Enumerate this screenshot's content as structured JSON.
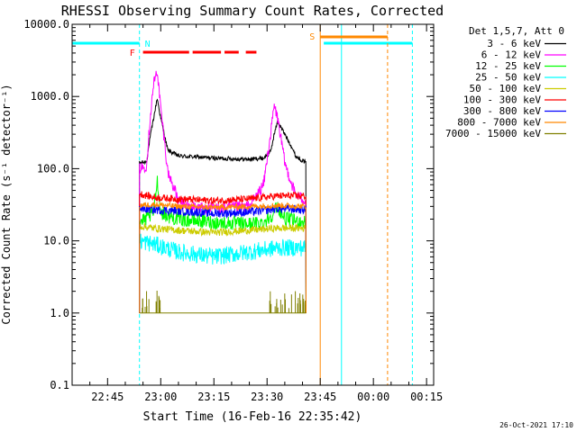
{
  "chart_data": {
    "type": "line",
    "title": "RHESSI Observing Summary Count Rates, Corrected",
    "xlabel": "Start Time (16-Feb-16 22:35:42)",
    "ylabel": "Corrected Count Rate (s⁻¹ detector⁻¹)",
    "y_scale": "log",
    "ylim": [
      0.1,
      10000
    ],
    "xlim": [
      "22:35",
      "00:17"
    ],
    "x_tick_labels": [
      "22:45",
      "23:00",
      "23:15",
      "23:30",
      "23:45",
      "00:00",
      "00:15"
    ],
    "y_tick_labels": [
      "10000.0",
      "1000.0",
      "100.0",
      "10.0",
      "1.0",
      "0.1"
    ],
    "legend_title": "Det 1,5,7, Att 0",
    "legend_position": "right",
    "timestamp": "26-Oct-2021 17:10",
    "series": [
      {
        "name": "3 - 6 keV",
        "color": "#000000",
        "x": [
          "22:54",
          "22:56",
          "22:57",
          "22:58",
          "22:59",
          "23:00",
          "23:02",
          "23:05",
          "23:15",
          "23:25",
          "23:29",
          "23:31",
          "23:32",
          "23:33",
          "23:35",
          "23:37",
          "23:38",
          "23:40",
          "23:41"
        ],
        "y": [
          120,
          125,
          270,
          500,
          950,
          500,
          180,
          150,
          140,
          135,
          140,
          170,
          300,
          450,
          300,
          200,
          150,
          130,
          120
        ]
      },
      {
        "name": "6 - 12 keV",
        "color": "#ff00ff",
        "x": [
          "22:54",
          "22:56",
          "22:57",
          "22:58",
          "22:59",
          "23:00",
          "23:02",
          "23:04",
          "23:05",
          "23:08",
          "23:15",
          "23:25",
          "23:29",
          "23:31",
          "23:32",
          "23:33",
          "23:35",
          "23:37",
          "23:38",
          "23:40",
          "23:41"
        ],
        "y": [
          100,
          110,
          500,
          1500,
          2300,
          700,
          90,
          50,
          35,
          30,
          28,
          30,
          60,
          300,
          750,
          500,
          120,
          60,
          45,
          38,
          36
        ]
      },
      {
        "name": "12 - 25 keV",
        "color": "#00ff00",
        "x": [
          "22:54",
          "22:56",
          "22:58",
          "22:59",
          "23:00",
          "23:02",
          "23:05",
          "23:15",
          "23:25",
          "23:29",
          "23:31",
          "23:33",
          "23:35",
          "23:41"
        ],
        "y": [
          18,
          20,
          25,
          70,
          25,
          22,
          20,
          18,
          17,
          18,
          22,
          30,
          20,
          18
        ]
      },
      {
        "name": "25 - 50 keV",
        "color": "#00ffff",
        "x": [
          "22:54",
          "22:58",
          "23:05",
          "23:15",
          "23:25",
          "23:33",
          "23:41"
        ],
        "y": [
          10,
          9,
          7,
          6,
          7,
          8,
          8
        ]
      },
      {
        "name": "50 - 100 keV",
        "color": "#cccc00",
        "x": [
          "22:54",
          "22:58",
          "23:05",
          "23:15",
          "23:25",
          "23:33",
          "23:41"
        ],
        "y": [
          16,
          15,
          14,
          13,
          14,
          15,
          15
        ]
      },
      {
        "name": "100 - 300 keV",
        "color": "#ff0000",
        "x": [
          "22:54",
          "22:58",
          "23:05",
          "23:15",
          "23:25",
          "23:33",
          "23:41"
        ],
        "y": [
          45,
          40,
          38,
          36,
          38,
          42,
          42
        ]
      },
      {
        "name": "300 - 800 keV",
        "color": "#0000ff",
        "x": [
          "22:54",
          "22:58",
          "23:05",
          "23:15",
          "23:25",
          "23:33",
          "23:41"
        ],
        "y": [
          28,
          27,
          26,
          24,
          25,
          28,
          27
        ]
      },
      {
        "name": "800 - 7000 keV",
        "color": "#ff8800",
        "x": [
          "22:54",
          "22:58",
          "23:05",
          "23:15",
          "23:25",
          "23:33",
          "23:41"
        ],
        "y": [
          31,
          32,
          30,
          29,
          30,
          31,
          30
        ]
      },
      {
        "name": "7000 - 15000 keV",
        "color": "#808000",
        "x": [
          "22:54",
          "23:00",
          "23:15",
          "23:25",
          "23:30",
          "23:33",
          "23:41"
        ],
        "y": [
          1,
          1,
          1,
          1,
          1,
          1,
          1
        ]
      }
    ],
    "annotations": [
      {
        "label": "N",
        "type": "night",
        "color": "#00ffff"
      },
      {
        "label": "F",
        "type": "flare",
        "color": "#ff0000"
      },
      {
        "label": "S",
        "type": "saa",
        "color": "#ff8800"
      }
    ]
  }
}
